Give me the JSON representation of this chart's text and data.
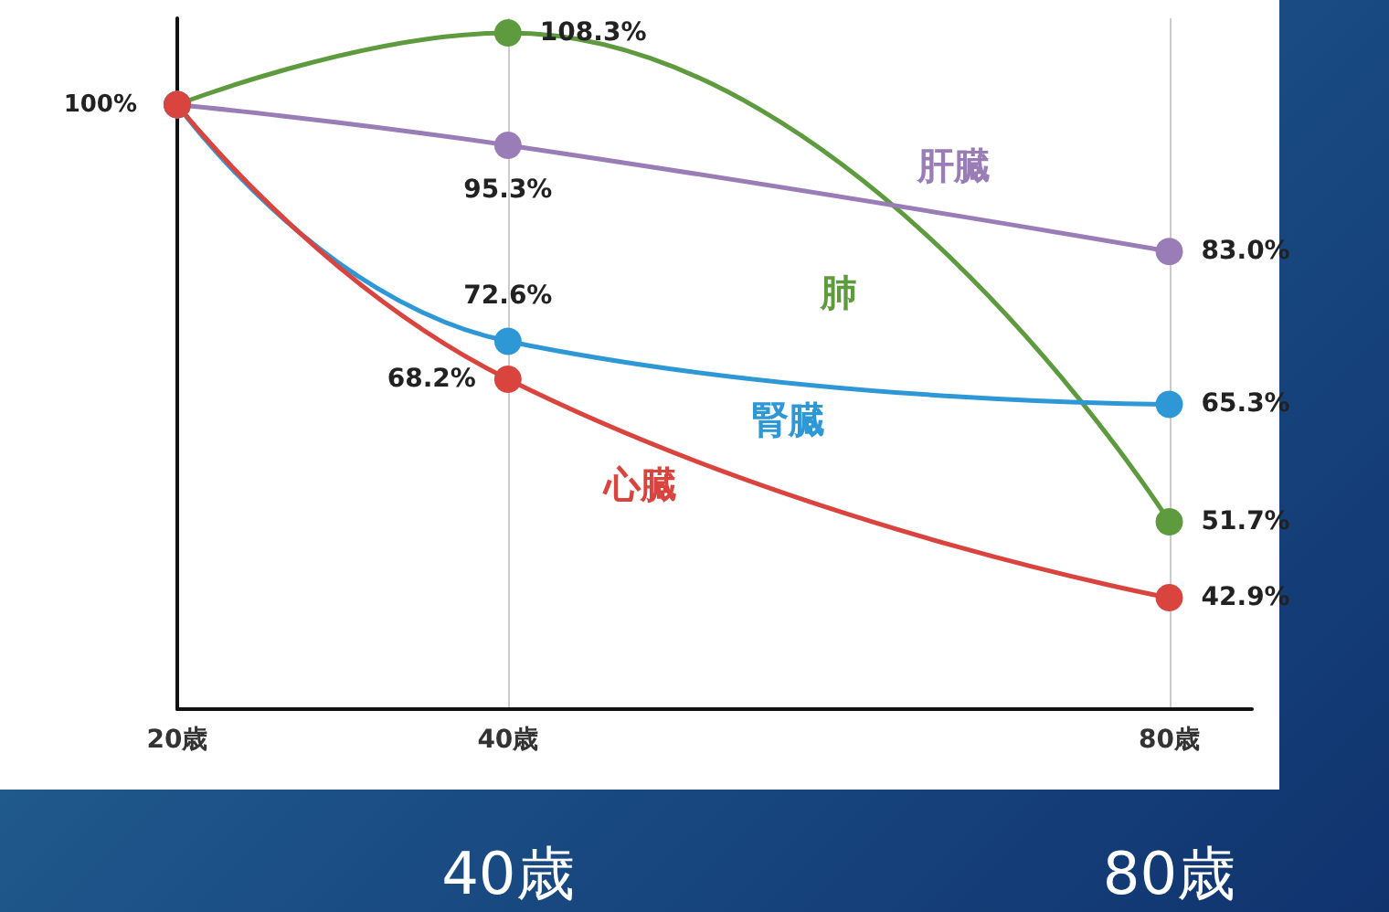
{
  "chart_data": {
    "type": "line",
    "x": [
      20,
      40,
      80
    ],
    "xlim": [
      20,
      85
    ],
    "xticks": [
      {
        "value": 20,
        "label": "20歳"
      },
      {
        "value": 40,
        "label": "40歳"
      },
      {
        "value": 80,
        "label": "80歳"
      }
    ],
    "ylim": [
      30,
      110
    ],
    "series": [
      {
        "name": "肺",
        "color": "#5e9a3e",
        "values": [
          100,
          108.3,
          51.7
        ],
        "value_labels": [
          null,
          "108.3%",
          "51.7%"
        ]
      },
      {
        "name": "肝臓",
        "color": "#9a7cb6",
        "values": [
          100,
          95.3,
          83.0
        ],
        "value_labels": [
          null,
          "95.3%",
          "83.0%"
        ]
      },
      {
        "name": "腎臓",
        "color": "#2e98d6",
        "values": [
          100,
          72.6,
          65.3
        ],
        "value_labels": [
          null,
          "72.6%",
          "65.3%"
        ]
      },
      {
        "name": "心臓",
        "color": "#d9443f",
        "values": [
          100,
          68.2,
          42.9
        ],
        "value_labels": [
          null,
          "68.2%",
          "42.9%"
        ]
      }
    ],
    "grid": "x",
    "legend": false,
    "marker": "circle",
    "line_style": "solid",
    "annotations": [
      "100%",
      "40歳",
      "80歳"
    ]
  }
}
